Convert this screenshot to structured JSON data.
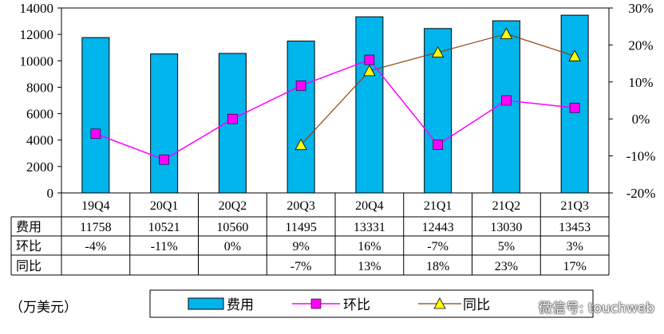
{
  "chart_data": {
    "type": "bar",
    "categories": [
      "19Q4",
      "20Q1",
      "20Q2",
      "20Q3",
      "20Q4",
      "21Q1",
      "21Q2",
      "21Q3"
    ],
    "series": [
      {
        "name": "费用",
        "type": "bar",
        "axis": "left",
        "values": [
          11758,
          10521,
          10560,
          11495,
          13331,
          12443,
          13030,
          13453
        ],
        "color": "#00B4EC"
      },
      {
        "name": "环比",
        "type": "line",
        "axis": "right",
        "values": [
          -4,
          -11,
          0,
          9,
          16,
          -7,
          5,
          3
        ],
        "color": "#FF00FF"
      },
      {
        "name": "同比",
        "type": "line",
        "axis": "right",
        "values": [
          null,
          null,
          null,
          -7,
          13,
          18,
          23,
          17
        ],
        "color": "#FFFF00"
      }
    ],
    "y_left": {
      "min": 0,
      "max": 14000,
      "ticks": [
        "0",
        "2000",
        "4000",
        "6000",
        "8000",
        "10000",
        "12000",
        "14000"
      ]
    },
    "y_right": {
      "min": -20,
      "max": 30,
      "ticks": [
        "-20%",
        "-10%",
        "0%",
        "10%",
        "20%",
        "30%"
      ]
    },
    "grid": false
  },
  "table": {
    "rows": [
      {
        "label": "费用",
        "cells": [
          "11758",
          "10521",
          "10560",
          "11495",
          "13331",
          "12443",
          "13030",
          "13453"
        ]
      },
      {
        "label": "环比",
        "cells": [
          "-4%",
          "-11%",
          "0%",
          "9%",
          "16%",
          "-7%",
          "5%",
          "3%"
        ]
      },
      {
        "label": "同比",
        "cells": [
          "",
          "",
          "",
          "-7%",
          "13%",
          "18%",
          "23%",
          "17%"
        ]
      }
    ]
  },
  "legend": [
    "费用",
    "环比",
    "同比"
  ],
  "unit_label": "（万美元）",
  "watermark": "微信号: touchweb"
}
